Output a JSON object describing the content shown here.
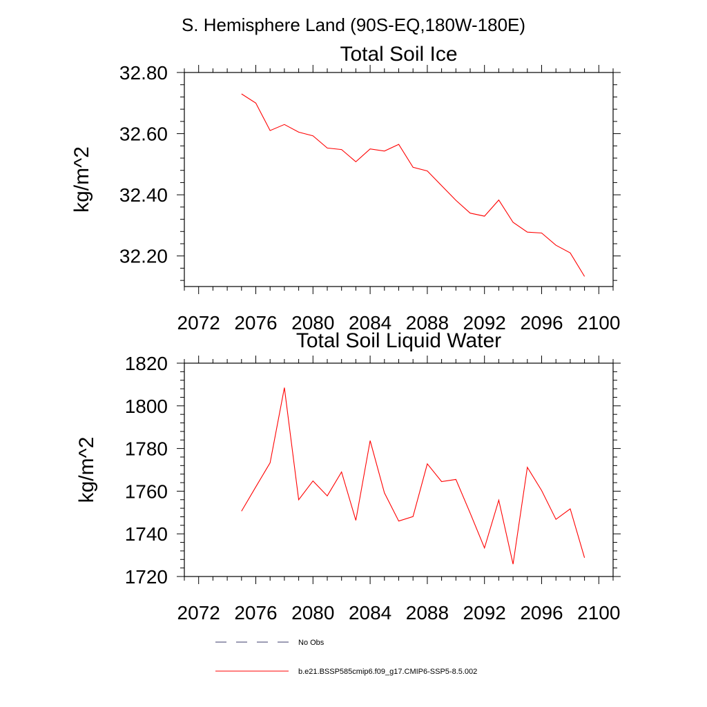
{
  "page": {
    "title": "S. Hemisphere Land (90S-EQ,180W-180E)"
  },
  "chart_data": [
    {
      "type": "line",
      "title": "Total Soil Ice",
      "xlabel": "",
      "ylabel": "kg/m^2",
      "xlim": [
        2071,
        2101
      ],
      "ylim": [
        32.1,
        32.8
      ],
      "x_ticks": [
        2072,
        2076,
        2080,
        2084,
        2088,
        2092,
        2096,
        2100
      ],
      "x_tick_labels": [
        "2072",
        "2076",
        "2080",
        "2084",
        "2088",
        "2092",
        "2096",
        "2100"
      ],
      "y_ticks": [
        32.2,
        32.4,
        32.6,
        32.8
      ],
      "y_tick_labels": [
        "32.20",
        "32.40",
        "32.60",
        "32.80"
      ],
      "grid": false,
      "series": [
        {
          "name": "b.e21.BSSP585cmip6.f09_g17.CMIP6-SSP5-8.5.002",
          "color": "#ff0000",
          "x": [
            2075,
            2076,
            2077,
            2078,
            2079,
            2080,
            2081,
            2082,
            2083,
            2084,
            2085,
            2086,
            2087,
            2088,
            2089,
            2090,
            2091,
            2092,
            2093,
            2094,
            2095,
            2096,
            2097,
            2098,
            2099
          ],
          "y": [
            32.73,
            32.7,
            32.61,
            32.63,
            32.605,
            32.593,
            32.553,
            32.548,
            32.508,
            32.55,
            32.543,
            32.565,
            32.49,
            32.478,
            32.43,
            32.382,
            32.34,
            32.33,
            32.383,
            32.31,
            32.278,
            32.275,
            32.235,
            32.21,
            32.133
          ]
        }
      ]
    },
    {
      "type": "line",
      "title": "Total Soil Liquid Water",
      "xlabel": "",
      "ylabel": "kg/m^2",
      "xlim": [
        2071,
        2101
      ],
      "ylim": [
        1720,
        1820
      ],
      "x_ticks": [
        2072,
        2076,
        2080,
        2084,
        2088,
        2092,
        2096,
        2100
      ],
      "x_tick_labels": [
        "2072",
        "2076",
        "2080",
        "2084",
        "2088",
        "2092",
        "2096",
        "2100"
      ],
      "y_ticks": [
        1720,
        1740,
        1760,
        1780,
        1800,
        1820
      ],
      "y_tick_labels": [
        "1720",
        "1740",
        "1760",
        "1780",
        "1800",
        "1820"
      ],
      "grid": false,
      "series": [
        {
          "name": "b.e21.BSSP585cmip6.f09_g17.CMIP6-SSP5-8.5.002",
          "color": "#ff0000",
          "x": [
            2075,
            2076,
            2077,
            2078,
            2079,
            2080,
            2081,
            2082,
            2083,
            2084,
            2085,
            2086,
            2087,
            2088,
            2089,
            2090,
            2091,
            2092,
            2093,
            2094,
            2095,
            2096,
            2097,
            2098,
            2099
          ],
          "y": [
            1750.6,
            1762,
            1773.3,
            1808.5,
            1756,
            1764.8,
            1757.8,
            1769,
            1746.3,
            1783.7,
            1759.2,
            1746,
            1748.1,
            1772.8,
            1764.5,
            1765.5,
            1749.7,
            1733.4,
            1755.8,
            1725.8,
            1771.2,
            1760.3,
            1746.8,
            1751.7,
            1728.8
          ]
        }
      ]
    }
  ],
  "legend": {
    "position": "bottom-center",
    "entries": [
      {
        "label": "No Obs",
        "style": "dashed",
        "color": "#3a3a6a"
      },
      {
        "label": "b.e21.BSSP585cmip6.f09_g17.CMIP6-SSP5-8.5.002",
        "style": "solid",
        "color": "#ff0000"
      }
    ]
  }
}
